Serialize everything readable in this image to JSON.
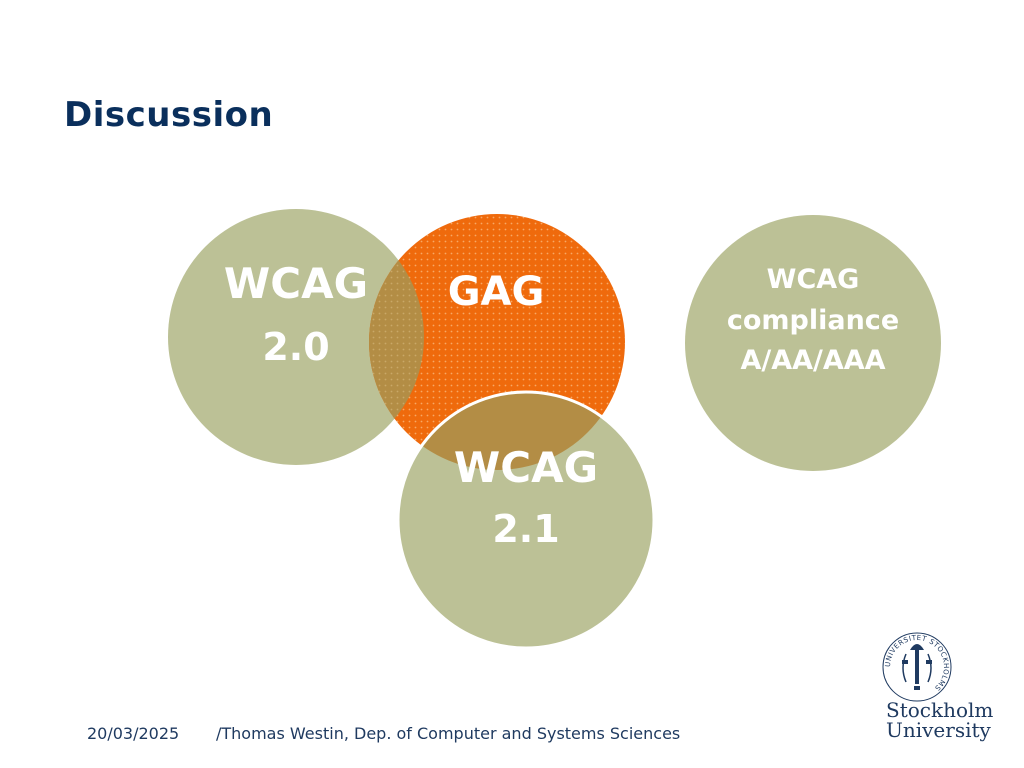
{
  "slide": {
    "title": "Discussion"
  },
  "diagram": {
    "circles": [
      {
        "id": "wcag20",
        "lines": [
          "WCAG",
          "2.0"
        ],
        "color": "#b7ba8a"
      },
      {
        "id": "gag",
        "lines": [
          "GAG"
        ],
        "color": "#ef6a0c"
      },
      {
        "id": "wcag21",
        "lines": [
          "WCAG",
          "2.1"
        ],
        "color": "#b7ba8a"
      },
      {
        "id": "compliance",
        "lines": [
          "WCAG",
          "compliance",
          "A/AA/AAA"
        ],
        "color": "#b7ba8a"
      }
    ]
  },
  "footer": {
    "date": "20/03/2025",
    "author": "/Thomas Westin, Dep. of Computer and Systems Sciences"
  },
  "logo": {
    "line1": "Stockholm",
    "line2": "University",
    "seal_text": "UNIVERSITET STOCKHOLMS"
  }
}
